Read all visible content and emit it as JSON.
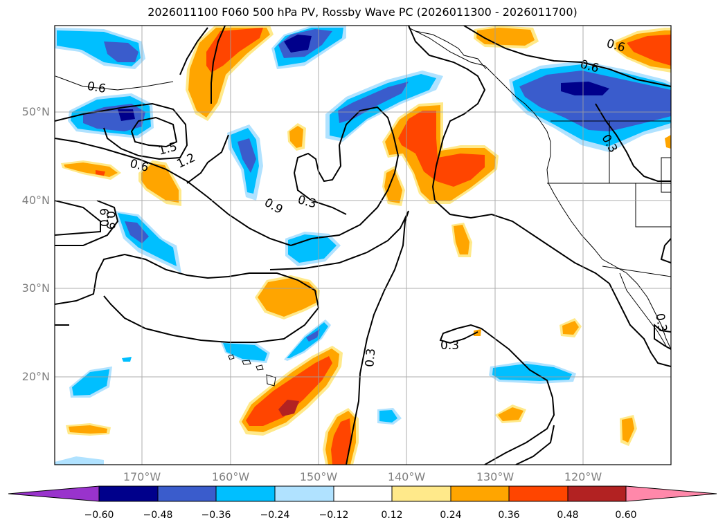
{
  "title": "2026011100 F060 500 hPa PV, Rossby Wave PC (2026011300 - 2026011700)",
  "map": {
    "lon_range": [
      -180,
      -110
    ],
    "lat_range": [
      10,
      60
    ],
    "gridlines": true,
    "lat_ticks": [
      "50°N",
      "40°N",
      "30°N",
      "20°N"
    ],
    "lon_ticks": [
      "170°W",
      "160°W",
      "150°W",
      "140°W",
      "130°W",
      "120°W"
    ],
    "contour_labels": [
      "0.6",
      "1.5",
      "1.2",
      "0.6",
      "0.9",
      "0.3",
      "0.9",
      "0.9",
      "0.3",
      "0.3",
      "0.6",
      "0.6",
      "0.3",
      "0.3"
    ]
  },
  "colorbar": {
    "ticks": [
      "−0.60",
      "−0.48",
      "−0.36",
      "−0.24",
      "−0.12",
      "0.12",
      "0.24",
      "0.36",
      "0.48",
      "0.60"
    ],
    "colors": [
      "#9933cc",
      "#00008b",
      "#3a5ccc",
      "#00bfff",
      "#b0e2ff",
      "#ffffff",
      "#ffe98a",
      "#ffa500",
      "#ff4500",
      "#b22222",
      "#ff88aa"
    ],
    "extend": "both"
  }
}
